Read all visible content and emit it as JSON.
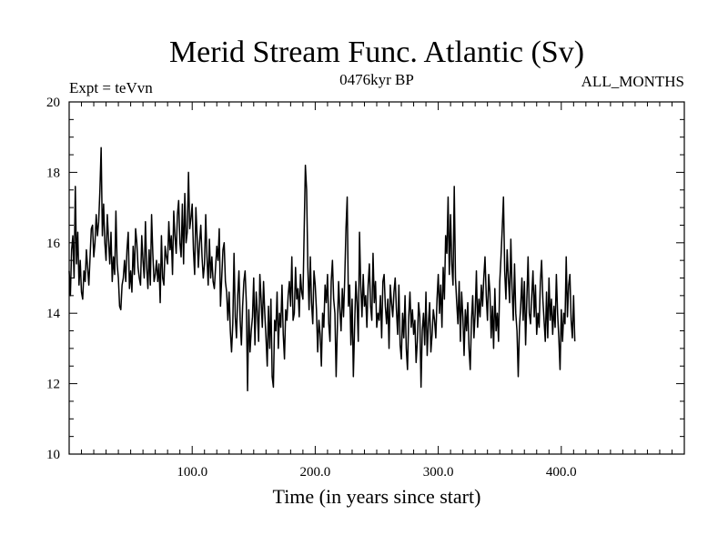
{
  "chart_data": {
    "type": "line",
    "title": "Merid Stream Func. Atlantic (Sv)",
    "header_left": "Expt = teVvn",
    "header_center": "0476kyr BP",
    "header_right": "ALL_MONTHS",
    "xlabel": "Time (in years since start)",
    "ylabel": "",
    "xlim": [
      0,
      500
    ],
    "ylim": [
      10,
      20
    ],
    "x_ticks": [
      100,
      200,
      300,
      400
    ],
    "x_tick_labels": [
      "100.0",
      "200.0",
      "300.0",
      "400.0"
    ],
    "y_ticks": [
      10,
      12,
      14,
      16,
      18,
      20
    ],
    "y_tick_labels": [
      "10",
      "12",
      "14",
      "16",
      "18",
      "20"
    ],
    "grid": false,
    "line_color": "#000000",
    "series": [
      {
        "x_start": 0,
        "x_step": 1,
        "values": [
          15.2,
          14.5,
          15.8,
          16.2,
          15.0,
          17.6,
          15.4,
          16.3,
          14.8,
          15.5,
          14.6,
          14.4,
          15.2,
          14.9,
          15.8,
          15.3,
          14.8,
          15.6,
          16.4,
          16.5,
          15.6,
          16.0,
          16.8,
          16.2,
          16.6,
          17.5,
          18.7,
          16.2,
          17.1,
          16.0,
          15.5,
          16.8,
          16.1,
          15.4,
          16.3,
          14.9,
          15.6,
          15.1,
          16.9,
          15.4,
          15.0,
          14.2,
          14.1,
          14.8,
          15.0,
          15.5,
          14.9,
          15.8,
          16.3,
          14.7,
          15.2,
          14.6,
          15.9,
          15.1,
          16.4,
          16.0,
          15.3,
          15.0,
          14.8,
          16.2,
          15.5,
          15.0,
          16.6,
          15.3,
          14.7,
          15.8,
          14.8,
          16.8,
          15.7,
          14.9,
          15.1,
          15.5,
          14.9,
          15.4,
          14.3,
          16.2,
          15.0,
          14.8,
          15.9,
          15.6,
          15.4,
          16.6,
          15.8,
          16.2,
          15.1,
          16.9,
          16.2,
          15.7,
          16.8,
          17.2,
          16.0,
          15.6,
          17.1,
          15.4,
          17.4,
          16.0,
          16.3,
          18.0,
          16.4,
          16.7,
          17.1,
          15.8,
          15.1,
          17.0,
          16.2,
          15.3,
          16.0,
          16.5,
          15.6,
          15.0,
          15.4,
          16.8,
          15.6,
          14.8,
          16.1,
          15.0,
          15.6,
          14.9,
          14.7,
          15.3,
          15.9,
          15.5,
          16.4,
          14.2,
          15.0,
          15.8,
          16.0,
          14.9,
          14.6,
          13.8,
          14.6,
          13.5,
          12.9,
          13.7,
          15.7,
          13.9,
          13.3,
          14.5,
          15.2,
          13.8,
          13.1,
          14.2,
          14.9,
          15.2,
          14.3,
          11.8,
          14.1,
          12.9,
          13.5,
          13.9,
          15.0,
          13.1,
          14.6,
          14.0,
          13.2,
          15.1,
          14.4,
          13.6,
          14.9,
          14.0,
          13.3,
          12.5,
          14.2,
          13.0,
          14.4,
          12.2,
          11.9,
          13.8,
          13.5,
          14.6,
          13.0,
          14.0,
          13.6,
          14.8,
          13.4,
          12.7,
          14.1,
          13.8,
          14.5,
          14.9,
          14.2,
          15.6,
          13.8,
          14.0,
          15.3,
          14.4,
          14.7,
          13.9,
          15.1,
          14.6,
          14.4,
          16.3,
          18.2,
          17.5,
          15.3,
          14.1,
          15.6,
          14.3,
          13.7,
          15.2,
          14.8,
          14.1,
          12.9,
          13.8,
          13.4,
          12.5,
          14.0,
          13.6,
          14.8,
          14.3,
          15.1,
          13.7,
          13.2,
          14.9,
          15.5,
          14.4,
          14.0,
          12.2,
          13.6,
          14.9,
          14.1,
          13.5,
          14.7,
          13.9,
          15.0,
          16.4,
          17.3,
          14.2,
          14.8,
          13.1,
          14.4,
          12.2,
          13.6,
          14.9,
          14.3,
          13.2,
          16.3,
          14.8,
          13.9,
          15.1,
          14.2,
          14.5,
          13.6,
          14.8,
          15.4,
          14.2,
          13.8,
          15.7,
          14.3,
          14.9,
          13.6,
          14.0,
          13.8,
          14.5,
          13.3,
          14.9,
          15.1,
          14.2,
          13.7,
          14.4,
          13.0,
          14.8,
          14.3,
          13.9,
          14.6,
          15.0,
          14.1,
          13.4,
          14.8,
          13.1,
          12.7,
          14.0,
          13.3,
          14.5,
          13.0,
          12.4,
          13.9,
          14.6,
          13.6,
          14.1,
          13.4,
          13.8,
          12.6,
          13.2,
          14.3,
          13.9,
          11.9,
          13.5,
          14.0,
          13.1,
          14.6,
          12.8,
          13.7,
          14.3,
          12.9,
          13.4,
          14.1,
          13.8,
          13.3,
          14.4,
          15.1,
          14.0,
          14.8,
          13.6,
          15.3,
          14.4,
          16.2,
          15.7,
          17.3,
          15.1,
          16.8,
          15.4,
          14.8,
          17.6,
          15.0,
          14.3,
          13.7,
          14.9,
          13.2,
          14.6,
          13.9,
          12.8,
          14.1,
          13.5,
          14.3,
          13.0,
          12.4,
          13.8,
          14.5,
          13.3,
          14.0,
          15.2,
          13.6,
          14.4,
          13.9,
          14.8,
          14.2,
          15.0,
          15.6,
          14.5,
          13.8,
          15.1,
          14.6,
          13.3,
          14.2,
          13.0,
          14.7,
          13.5,
          14.0,
          13.2,
          14.9,
          15.6,
          16.4,
          17.3,
          15.2,
          14.4,
          15.8,
          15.0,
          14.3,
          16.1,
          14.7,
          13.8,
          15.4,
          14.0,
          13.5,
          12.2,
          13.6,
          14.2,
          15.0,
          13.8,
          14.9,
          13.1,
          14.4,
          15.6,
          14.0,
          13.7,
          14.5,
          15.2,
          13.9,
          14.8,
          13.4,
          14.0,
          13.6,
          14.9,
          15.5,
          14.4,
          13.8,
          13.2,
          14.6,
          13.3,
          15.0,
          13.8,
          14.4,
          13.4,
          14.2,
          13.6,
          15.1,
          14.0,
          13.3,
          12.4,
          14.1,
          13.2,
          14.0,
          13.7,
          15.6,
          13.9,
          14.8,
          15.1,
          13.8,
          13.3,
          14.5,
          13.2
        ]
      }
    ]
  }
}
